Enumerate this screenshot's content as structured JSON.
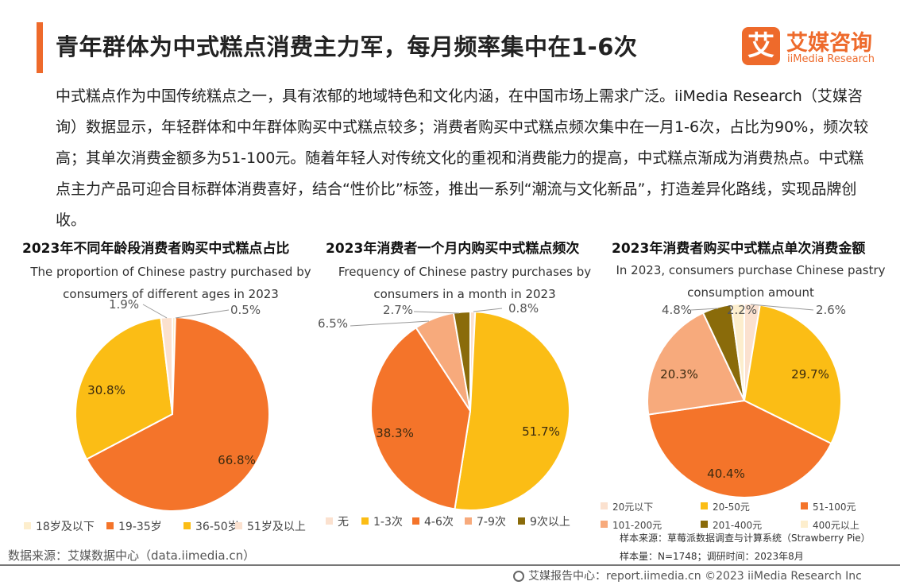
{
  "header": {
    "title": "青年群体为中式糕点消费主力军，每月频率集中在1-6次",
    "logo_mark": "艾",
    "logo_cn": "艾媒咨询",
    "logo_en": "iiMedia Research"
  },
  "intro": "中式糕点作为中国传统糕点之一，具有浓郁的地域特色和文化内涵，在中国市场上需求广泛。iiMedia Research（艾媒咨询）数据显示，年轻群体和中年群体购买中式糕点较多；消费者购买中式糕点频次集中在一月1-6次，占比为90%，频次较高；其单次消费金额多为51-100元。随着年轻人对传统文化的重视和消费能力的提高，中式糕点渐成为消费热点。中式糕点主力产品可迎合目标群体消费喜好，结合“性价比”标签，推出一系列“潮流与文化新品”，打造差异化路线，实现品牌创收。",
  "chart_data": [
    {
      "type": "pie",
      "title": "2023年不同年龄段消费者购买中式糕点占比",
      "subtitle": "The proportion of Chinese pastry purchased by consumers of different ages in 2023",
      "categories": [
        "18岁及以下",
        "19-35岁",
        "36-50岁",
        "51岁及以上"
      ],
      "values": [
        0.5,
        66.8,
        30.8,
        1.9
      ],
      "labels": [
        "0.5%",
        "66.8%",
        "30.8%",
        "1.9%"
      ],
      "colors": [
        "#fdeecd",
        "#f4742a",
        "#fbbd15",
        "#fbe1cf"
      ],
      "legend": "bottom"
    },
    {
      "type": "pie",
      "title": "2023年消费者一个月内购买中式糕点频次",
      "subtitle": "Frequency of Chinese pastry purchases by consumers in a month in 2023",
      "categories": [
        "无",
        "1-3次",
        "4-6次",
        "7-9次",
        "9次以上"
      ],
      "values": [
        0.8,
        51.7,
        38.3,
        6.5,
        2.7
      ],
      "labels": [
        "0.8%",
        "51.7%",
        "38.3%",
        "6.5%",
        "2.7%"
      ],
      "colors": [
        "#fbe1cf",
        "#fbbd15",
        "#f4742a",
        "#f7aa7c",
        "#8a6b0a"
      ],
      "legend": "bottom"
    },
    {
      "type": "pie",
      "title": "2023年消费者购买中式糕点单次消费金额",
      "subtitle": "In 2023, consumers purchase Chinese pastry consumption amount",
      "categories": [
        "20元以下",
        "20-50元",
        "51-100元",
        "101-200元",
        "201-400元",
        "400元以上"
      ],
      "values": [
        2.6,
        29.7,
        40.4,
        20.3,
        4.8,
        2.2
      ],
      "labels": [
        "2.6%",
        "29.7%",
        "40.4%",
        "20.3%",
        "4.8%",
        "2.2%"
      ],
      "colors": [
        "#fbe1cf",
        "#fbbd15",
        "#f4742a",
        "#f7aa7c",
        "#8a6b0a",
        "#fdeecd"
      ],
      "legend": "bottom"
    }
  ],
  "source": "数据来源：艾媒数据中心（data.iimedia.cn）",
  "sample_source": "样本来源：草莓派数据调查与计算系统（Strawberry Pie）",
  "sample_size": "样本量：N=1748；调研时间：2023年8月",
  "footer": "艾媒报告中心：report.iimedia.cn  ©2023  iiMedia Research  Inc"
}
